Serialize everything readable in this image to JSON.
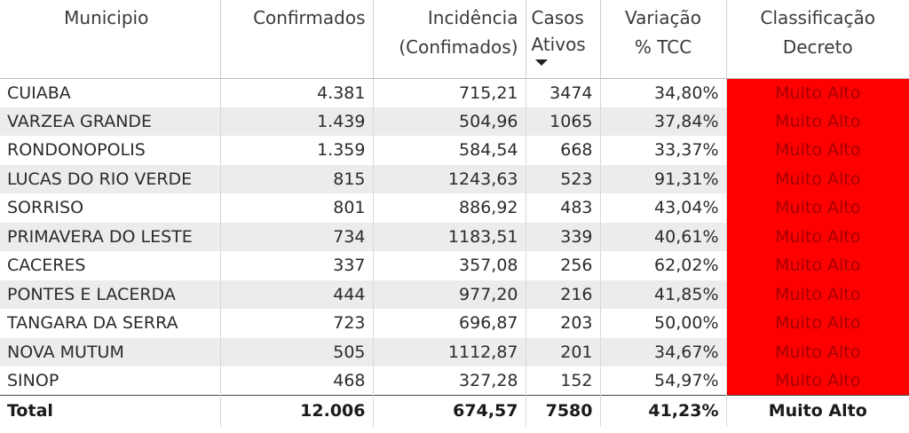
{
  "headers": {
    "municipio": "Municipio",
    "confirmados": "Confirmados",
    "incidencia_l1": "Incidência",
    "incidencia_l2": "(Confimados)",
    "casos_l1": "Casos",
    "casos_l2": "Ativos",
    "variacao_l1": "Variação",
    "variacao_l2": "% TCC",
    "classificacao_l1": "Classificação",
    "classificacao_l2": "Decreto"
  },
  "sort": {
    "column": "Casos Ativos",
    "direction": "descending"
  },
  "colors": {
    "classification_bg": "#ff0000",
    "classification_text": "#a40000",
    "row_alt": "#ececec"
  },
  "rows": [
    {
      "municipio": "CUIABA",
      "confirmados": "4.381",
      "incidencia": "715,21",
      "casos_ativos": "3474",
      "variacao": "34,80%",
      "classificacao": "Muito Alto"
    },
    {
      "municipio": "VARZEA GRANDE",
      "confirmados": "1.439",
      "incidencia": "504,96",
      "casos_ativos": "1065",
      "variacao": "37,84%",
      "classificacao": "Muito Alto"
    },
    {
      "municipio": "RONDONOPOLIS",
      "confirmados": "1.359",
      "incidencia": "584,54",
      "casos_ativos": "668",
      "variacao": "33,37%",
      "classificacao": "Muito Alto"
    },
    {
      "municipio": "LUCAS DO RIO VERDE",
      "confirmados": "815",
      "incidencia": "1243,63",
      "casos_ativos": "523",
      "variacao": "91,31%",
      "classificacao": "Muito Alto"
    },
    {
      "municipio": "SORRISO",
      "confirmados": "801",
      "incidencia": "886,92",
      "casos_ativos": "483",
      "variacao": "43,04%",
      "classificacao": "Muito Alto"
    },
    {
      "municipio": "PRIMAVERA DO LESTE",
      "confirmados": "734",
      "incidencia": "1183,51",
      "casos_ativos": "339",
      "variacao": "40,61%",
      "classificacao": "Muito Alto"
    },
    {
      "municipio": "CACERES",
      "confirmados": "337",
      "incidencia": "357,08",
      "casos_ativos": "256",
      "variacao": "62,02%",
      "classificacao": "Muito Alto"
    },
    {
      "municipio": "PONTES E LACERDA",
      "confirmados": "444",
      "incidencia": "977,20",
      "casos_ativos": "216",
      "variacao": "41,85%",
      "classificacao": "Muito Alto"
    },
    {
      "municipio": "TANGARA DA SERRA",
      "confirmados": "723",
      "incidencia": "696,87",
      "casos_ativos": "203",
      "variacao": "50,00%",
      "classificacao": "Muito Alto"
    },
    {
      "municipio": "NOVA MUTUM",
      "confirmados": "505",
      "incidencia": "1112,87",
      "casos_ativos": "201",
      "variacao": "34,67%",
      "classificacao": "Muito Alto"
    },
    {
      "municipio": "SINOP",
      "confirmados": "468",
      "incidencia": "327,28",
      "casos_ativos": "152",
      "variacao": "54,97%",
      "classificacao": "Muito Alto"
    }
  ],
  "total": {
    "label": "Total",
    "confirmados": "12.006",
    "incidencia": "674,57",
    "casos_ativos": "7580",
    "variacao": "41,23%",
    "classificacao": "Muito Alto"
  }
}
